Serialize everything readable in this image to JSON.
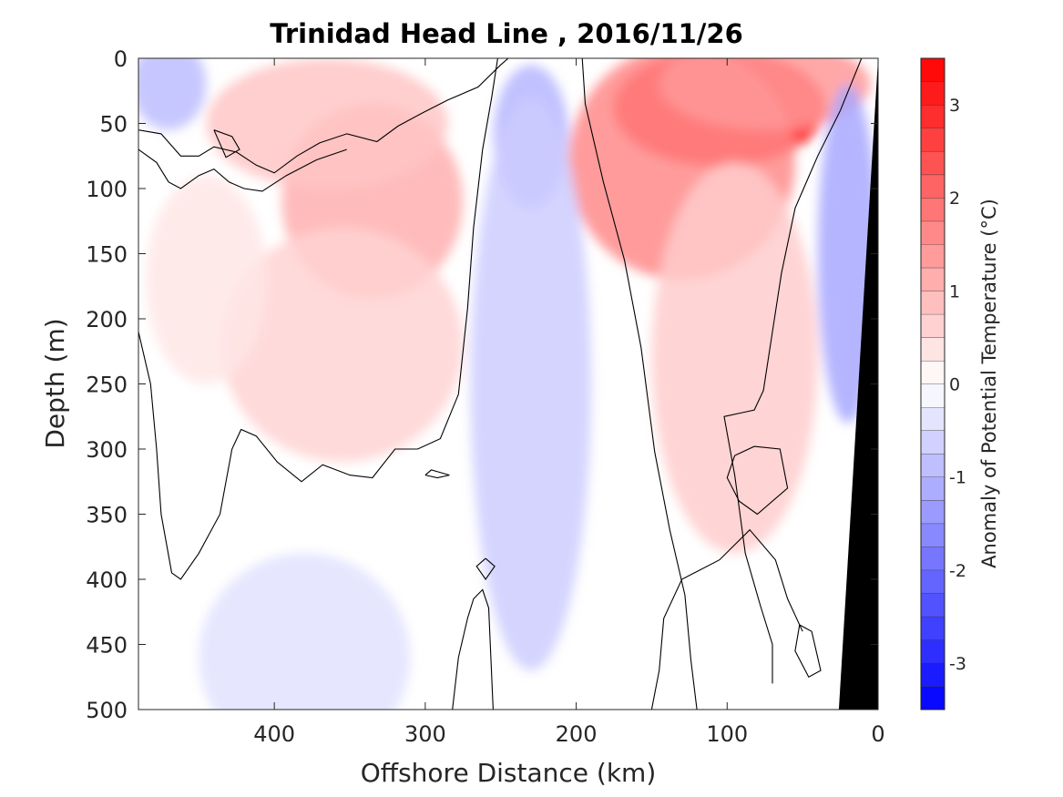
{
  "chart_data": {
    "type": "heatmap",
    "title": "Trinidad Head Line , 2016/11/26",
    "xlabel": "Offshore Distance (km)",
    "ylabel": "Depth (m)",
    "xlim": [
      490,
      0
    ],
    "x_reversed": true,
    "ylim": [
      0,
      500
    ],
    "y_reversed": true,
    "x_ticks": [
      400,
      300,
      200,
      100,
      0
    ],
    "y_ticks": [
      0,
      50,
      100,
      150,
      200,
      250,
      300,
      350,
      400,
      450,
      500
    ],
    "colorbar": {
      "label": "Anomaly of Potential Temperature (°C)",
      "range": [
        -3.5,
        3.5
      ],
      "step": 0.25,
      "ticks": [
        -3,
        -2,
        -1,
        0,
        1,
        2,
        3
      ],
      "low_color": "#0000ff",
      "mid_color": "#ffffff",
      "high_color": "#ff0000"
    },
    "bathymetry": {
      "color": "#000000",
      "surface_x": 0,
      "bottom_x": 26
    },
    "anomaly_features": [
      {
        "x": 105,
        "depth": 38,
        "value": 3.3,
        "rx": 70,
        "ry": 45
      },
      {
        "x": 130,
        "depth": 80,
        "value": 1.6,
        "rx": 75,
        "ry": 90
      },
      {
        "x": 75,
        "depth": 20,
        "value": 1.4,
        "rx": 70,
        "ry": 35
      },
      {
        "x": 95,
        "depth": 230,
        "value": 0.7,
        "rx": 55,
        "ry": 150
      },
      {
        "x": 335,
        "depth": 110,
        "value": 1.1,
        "rx": 60,
        "ry": 75
      },
      {
        "x": 365,
        "depth": 50,
        "value": 0.8,
        "rx": 80,
        "ry": 50
      },
      {
        "x": 355,
        "depth": 220,
        "value": 0.6,
        "rx": 80,
        "ry": 90
      },
      {
        "x": 445,
        "depth": 170,
        "value": 0.35,
        "rx": 40,
        "ry": 80
      },
      {
        "x": 230,
        "depth": 60,
        "value": -1.0,
        "rx": 25,
        "ry": 55
      },
      {
        "x": 230,
        "depth": 250,
        "value": -0.7,
        "rx": 40,
        "ry": 220
      },
      {
        "x": 20,
        "depth": 150,
        "value": -1.2,
        "rx": 20,
        "ry": 130
      },
      {
        "x": 470,
        "depth": 20,
        "value": -0.9,
        "rx": 25,
        "ry": 35
      },
      {
        "x": 380,
        "depth": 460,
        "value": -0.4,
        "rx": 70,
        "ry": 80
      }
    ],
    "zero_contours": [
      [
        [
          490,
          55
        ],
        [
          475,
          58
        ],
        [
          462,
          75
        ],
        [
          450,
          75
        ],
        [
          440,
          68
        ],
        [
          425,
          72
        ],
        [
          412,
          82
        ],
        [
          400,
          88
        ],
        [
          385,
          75
        ],
        [
          370,
          65
        ],
        [
          352,
          58
        ],
        [
          332,
          64
        ],
        [
          318,
          52
        ],
        [
          302,
          42
        ],
        [
          285,
          32
        ],
        [
          265,
          22
        ],
        [
          250,
          5
        ],
        [
          245,
          0
        ]
      ],
      [
        [
          490,
          70
        ],
        [
          478,
          80
        ],
        [
          470,
          95
        ],
        [
          462,
          100
        ],
        [
          450,
          90
        ],
        [
          440,
          85
        ],
        [
          430,
          95
        ],
        [
          420,
          100
        ],
        [
          408,
          102
        ],
        [
          392,
          90
        ],
        [
          372,
          78
        ],
        [
          352,
          70
        ]
      ],
      [
        [
          490,
          210
        ],
        [
          482,
          250
        ],
        [
          478,
          300
        ],
        [
          475,
          350
        ],
        [
          468,
          395
        ],
        [
          462,
          400
        ],
        [
          450,
          380
        ],
        [
          436,
          350
        ],
        [
          428,
          300
        ],
        [
          422,
          285
        ],
        [
          412,
          290
        ],
        [
          398,
          310
        ],
        [
          382,
          325
        ],
        [
          368,
          312
        ],
        [
          350,
          320
        ],
        [
          335,
          322
        ],
        [
          320,
          300
        ],
        [
          305,
          300
        ],
        [
          290,
          292
        ],
        [
          278,
          258
        ],
        [
          272,
          192
        ],
        [
          268,
          130
        ],
        [
          262,
          70
        ],
        [
          256,
          30
        ],
        [
          252,
          0
        ]
      ],
      [
        [
          196,
          0
        ],
        [
          194,
          35
        ],
        [
          182,
          95
        ],
        [
          168,
          155
        ],
        [
          157,
          222
        ],
        [
          148,
          302
        ],
        [
          138,
          362
        ],
        [
          128,
          412
        ],
        [
          124,
          462
        ],
        [
          120,
          500
        ]
      ],
      [
        [
          282,
          500
        ],
        [
          278,
          460
        ],
        [
          272,
          430
        ],
        [
          268,
          415
        ],
        [
          262,
          408
        ],
        [
          258,
          422
        ],
        [
          255,
          500
        ]
      ],
      [
        [
          150,
          500
        ],
        [
          145,
          470
        ],
        [
          142,
          430
        ],
        [
          130,
          400
        ],
        [
          105,
          385
        ],
        [
          85,
          362
        ],
        [
          68,
          385
        ],
        [
          60,
          415
        ],
        [
          50,
          440
        ]
      ],
      [
        [
          11,
          0
        ],
        [
          25,
          40
        ],
        [
          40,
          75
        ],
        [
          55,
          115
        ],
        [
          64,
          165
        ],
        [
          70,
          210
        ],
        [
          76,
          255
        ],
        [
          82,
          270
        ],
        [
          90,
          272
        ],
        [
          102,
          275
        ],
        [
          95,
          320
        ],
        [
          88,
          380
        ],
        [
          78,
          420
        ],
        [
          70,
          450
        ],
        [
          70,
          480
        ]
      ],
      [
        [
          95,
          305
        ],
        [
          82,
          298
        ],
        [
          65,
          300
        ],
        [
          60,
          330
        ],
        [
          80,
          350
        ],
        [
          92,
          340
        ],
        [
          100,
          322
        ],
        [
          95,
          305
        ]
      ],
      [
        [
          300,
          320
        ],
        [
          292,
          322
        ],
        [
          284,
          320
        ],
        [
          296,
          316
        ],
        [
          300,
          320
        ]
      ],
      [
        [
          260,
          384
        ],
        [
          254,
          390
        ],
        [
          260,
          400
        ],
        [
          266,
          390
        ],
        [
          260,
          384
        ]
      ],
      [
        [
          52,
          435
        ],
        [
          44,
          440
        ],
        [
          38,
          470
        ],
        [
          46,
          475
        ],
        [
          55,
          455
        ],
        [
          52,
          435
        ]
      ],
      [
        [
          440,
          55
        ],
        [
          428,
          60
        ],
        [
          423,
          70
        ],
        [
          432,
          76
        ],
        [
          440,
          55
        ]
      ]
    ]
  }
}
